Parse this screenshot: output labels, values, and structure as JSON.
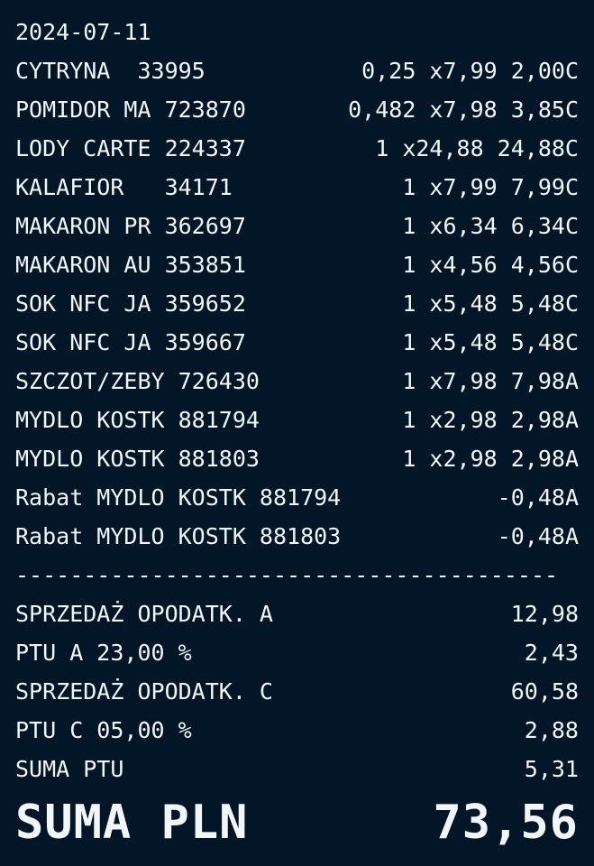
{
  "receipt": {
    "date": "2024-07-11",
    "items": [
      {
        "left": "CYTRYNA  33995",
        "right": "0,25 x7,99 2,00C"
      },
      {
        "left": "POMIDOR MA 723870",
        "right": "0,482 x7,98 3,85C"
      },
      {
        "left": "LODY CARTE 224337",
        "right": "1 x24,88 24,88C"
      },
      {
        "left": "KALAFIOR   34171",
        "right": "1 x7,99 7,99C"
      },
      {
        "left": "MAKARON PR 362697",
        "right": "1 x6,34 6,34C"
      },
      {
        "left": "MAKARON AU 353851",
        "right": "1 x4,56 4,56C"
      },
      {
        "left": "SOK NFC JA 359652",
        "right": "1 x5,48 5,48C"
      },
      {
        "left": "SOK NFC JA 359667",
        "right": "1 x5,48 5,48C"
      },
      {
        "left": "SZCZOT/ZEBY 726430",
        "right": "1 x7,98 7,98A"
      },
      {
        "left": "MYDLO KOSTK 881794",
        "right": "1 x2,98 2,98A"
      },
      {
        "left": "MYDLO KOSTK 881803",
        "right": "1 x2,98 2,98A"
      },
      {
        "left": "Rabat MYDLO KOSTK 881794",
        "right": "-0,48A"
      },
      {
        "left": "Rabat MYDLO KOSTK 881803",
        "right": "-0,48A"
      }
    ],
    "separator": "----------------------------------------",
    "taxes": [
      {
        "left": "SPRZEDAŻ OPODATK. A",
        "right": "12,98"
      },
      {
        "left": "PTU A 23,00 %",
        "right": "2,43"
      },
      {
        "left": "SPRZEDAŻ OPODATK. C",
        "right": "60,58"
      },
      {
        "left": "PTU C 05,00 %",
        "right": "2,88"
      },
      {
        "left": "SUMA PTU",
        "right": "5,31"
      }
    ],
    "total_label": "SUMA PLN",
    "total_value": "73,56"
  }
}
